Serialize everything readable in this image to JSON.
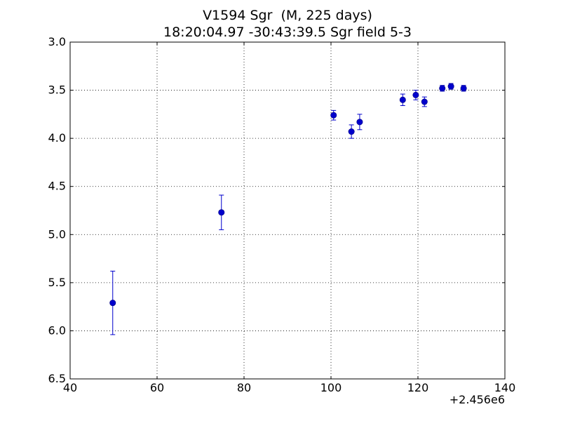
{
  "chart_data": {
    "type": "scatter",
    "title": "V1594 Sgr  (M, 225 days)",
    "subtitle": "18:20:04.97 -30:43:39.5 Sgr field 5-3",
    "xlabel": "",
    "ylabel": "",
    "x_offset_label": "+2.456e6",
    "xlim": [
      40,
      140
    ],
    "ylim": [
      3.0,
      6.5
    ],
    "y_inverted": true,
    "grid": true,
    "x_ticks": [
      "40",
      "60",
      "80",
      "100",
      "120",
      "140"
    ],
    "x_tick_values": [
      40,
      60,
      80,
      100,
      120,
      140
    ],
    "y_ticks": [
      "3.0",
      "3.5",
      "4.0",
      "4.5",
      "5.0",
      "5.5",
      "6.0",
      "6.5"
    ],
    "y_tick_values": [
      3.0,
      3.5,
      4.0,
      4.5,
      5.0,
      5.5,
      6.0,
      6.5
    ],
    "series": [
      {
        "color": "#0000cc",
        "marker": "circle",
        "points": [
          {
            "x": 49.8,
            "y": 5.71,
            "err": 0.33
          },
          {
            "x": 74.8,
            "y": 4.77,
            "err": 0.18
          },
          {
            "x": 100.6,
            "y": 3.76,
            "err": 0.05
          },
          {
            "x": 104.7,
            "y": 3.93,
            "err": 0.07
          },
          {
            "x": 106.6,
            "y": 3.83,
            "err": 0.08
          },
          {
            "x": 116.5,
            "y": 3.6,
            "err": 0.06
          },
          {
            "x": 119.5,
            "y": 3.55,
            "err": 0.05
          },
          {
            "x": 121.5,
            "y": 3.62,
            "err": 0.05
          },
          {
            "x": 125.6,
            "y": 3.48,
            "err": 0.03
          },
          {
            "x": 127.6,
            "y": 3.46,
            "err": 0.03
          },
          {
            "x": 130.5,
            "y": 3.48,
            "err": 0.03
          }
        ]
      }
    ]
  }
}
